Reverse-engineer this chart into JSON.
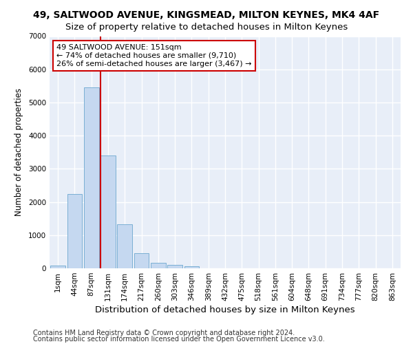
{
  "title1": "49, SALTWOOD AVENUE, KINGSMEAD, MILTON KEYNES, MK4 4AF",
  "title2": "Size of property relative to detached houses in Milton Keynes",
  "xlabel": "Distribution of detached houses by size in Milton Keynes",
  "ylabel": "Number of detached properties",
  "footer1": "Contains HM Land Registry data © Crown copyright and database right 2024.",
  "footer2": "Contains public sector information licensed under the Open Government Licence v3.0.",
  "categories": [
    "1sqm",
    "44sqm",
    "87sqm",
    "131sqm",
    "174sqm",
    "217sqm",
    "260sqm",
    "303sqm",
    "346sqm",
    "389sqm",
    "432sqm",
    "475sqm",
    "518sqm",
    "561sqm",
    "604sqm",
    "648sqm",
    "691sqm",
    "734sqm",
    "777sqm",
    "820sqm",
    "863sqm"
  ],
  "values": [
    75,
    2250,
    5450,
    3400,
    1330,
    450,
    175,
    100,
    60,
    5,
    0,
    0,
    0,
    0,
    0,
    0,
    0,
    0,
    0,
    0,
    0
  ],
  "bar_color": "#c5d8f0",
  "bar_edge_color": "#7aafd4",
  "vline_color": "#cc0000",
  "vline_x_idx": 3,
  "annotation_text": "49 SALTWOOD AVENUE: 151sqm\n← 74% of detached houses are smaller (9,710)\n26% of semi-detached houses are larger (3,467) →",
  "annotation_box_color": "white",
  "annotation_box_edge_color": "#cc0000",
  "ylim": [
    0,
    7000
  ],
  "yticks": [
    0,
    1000,
    2000,
    3000,
    4000,
    5000,
    6000,
    7000
  ],
  "bg_color": "#ffffff",
  "plot_bg_color": "#e8eef8",
  "grid_color": "white",
  "title1_fontsize": 10,
  "title2_fontsize": 9.5,
  "xlabel_fontsize": 9.5,
  "ylabel_fontsize": 8.5,
  "footer_fontsize": 7,
  "tick_fontsize": 7.5,
  "annot_fontsize": 8
}
